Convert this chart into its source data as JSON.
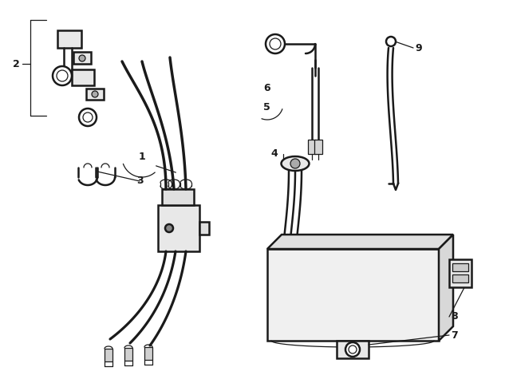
{
  "bg_color": "#ffffff",
  "line_color": "#1a1a1a",
  "fig_width": 6.38,
  "fig_height": 4.75,
  "lw_main": 1.8,
  "lw_thin": 0.9,
  "lw_wire": 2.5
}
